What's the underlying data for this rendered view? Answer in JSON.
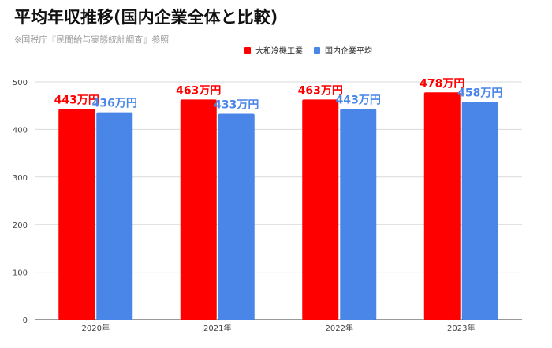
{
  "title": "平均年収推移(国内企業全体と比較)",
  "subtitle": "※国税庁『民間給与実態統計調査』参照",
  "chart_data": {
    "type": "bar",
    "categories": [
      "2020年",
      "2021年",
      "2022年",
      "2023年"
    ],
    "series": [
      {
        "name": "大和冷機工業",
        "values": [
          443,
          463,
          463,
          478
        ],
        "color": "#ff0000",
        "labels": [
          "443万円",
          "463万円",
          "463万円",
          "478万円"
        ]
      },
      {
        "name": "国内企業平均",
        "values": [
          436,
          433,
          443,
          458
        ],
        "color": "#4a86e8",
        "labels": [
          "436万円",
          "433万円",
          "443万円",
          "458万円"
        ]
      }
    ],
    "ylim": [
      0,
      500
    ],
    "yticks": [
      "0",
      "100",
      "200",
      "300",
      "400",
      "500"
    ],
    "grid": true,
    "legend": "top-right"
  }
}
